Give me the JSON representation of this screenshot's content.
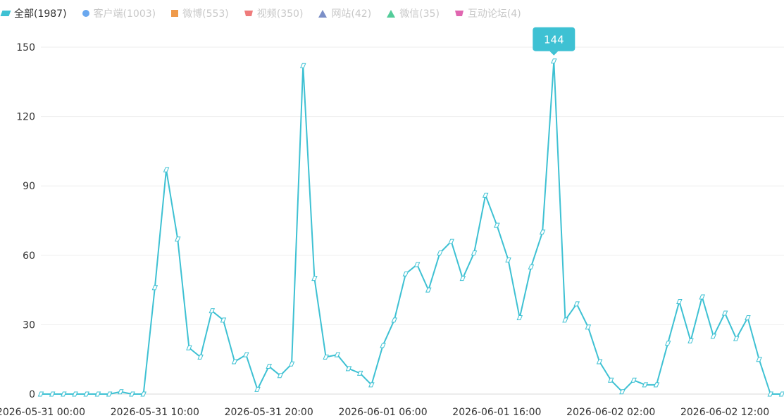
{
  "legend": [
    {
      "label": "全部(1987)",
      "icon": "parallelogram-icon",
      "color": "#3ec1d3",
      "active": true
    },
    {
      "label": "客户端(1003)",
      "icon": "circle-icon",
      "color": "#6aa8ef",
      "active": false
    },
    {
      "label": "微博(553)",
      "icon": "square-icon",
      "color": "#ef9a4a",
      "active": false
    },
    {
      "label": "视频(350)",
      "icon": "trapezoid-icon",
      "color": "#ef7b7b",
      "active": false
    },
    {
      "label": "网站(42)",
      "icon": "triangle-icon",
      "color": "#7b8fc7",
      "active": false
    },
    {
      "label": "微信(35)",
      "icon": "triangle-icon",
      "color": "#54cc9a",
      "active": false
    },
    {
      "label": "互动论坛(4)",
      "icon": "trapezoid-icon",
      "color": "#e066b0",
      "active": false
    }
  ],
  "chart_data": {
    "type": "line",
    "title": "",
    "xlabel": "",
    "ylabel": "",
    "ylim": [
      0,
      150
    ],
    "yticks": [
      0,
      30,
      60,
      90,
      120,
      150
    ],
    "grid": true,
    "legend_position": "top-left",
    "x_tick_labels": [
      "2026-05-31 00:00",
      "2026-05-31 10:00",
      "2026-05-31 20:00",
      "2026-06-01 06:00",
      "2026-06-01 16:00",
      "2026-06-02 02:00",
      "2026-06-02 12:00"
    ],
    "x_start": "2026-05-31 00:00",
    "x_interval_hours": 1,
    "series": [
      {
        "name": "全部(1987)",
        "color": "#3ec1d3",
        "values": [
          0,
          0,
          0,
          0,
          0,
          0,
          0,
          1,
          0,
          0,
          46,
          97,
          67,
          20,
          16,
          36,
          32,
          14,
          17,
          2,
          12,
          8,
          13,
          142,
          50,
          16,
          17,
          11,
          9,
          4,
          21,
          32,
          52,
          56,
          45,
          61,
          66,
          50,
          61,
          86,
          73,
          58,
          33,
          55,
          70,
          144,
          32,
          39,
          29,
          14,
          6,
          1,
          6,
          4,
          4,
          22,
          40,
          23,
          42,
          25,
          35,
          24,
          33,
          15,
          0,
          0
        ]
      }
    ],
    "tooltip": {
      "value": "144",
      "index": 45
    }
  }
}
